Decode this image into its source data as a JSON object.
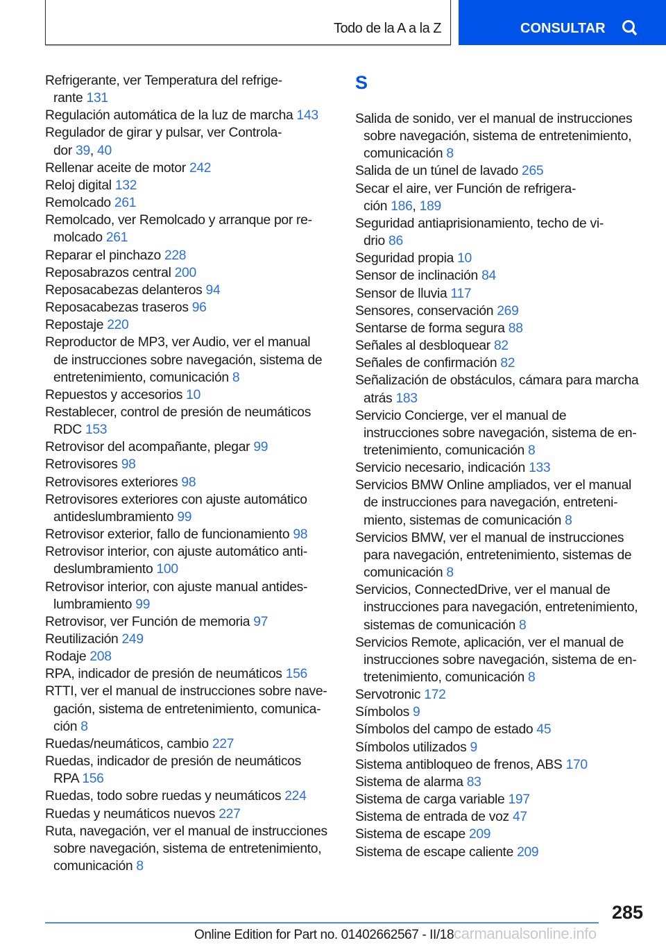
{
  "header": {
    "title": "Todo de la A a la Z",
    "button_label": "CONSULTAR",
    "button_icon": "search-icon",
    "accent": "#0053e8"
  },
  "left_entries": [
    {
      "lines": [
        "Refrigerante, ver Temperatura del refrige-",
        "rante"
      ],
      "pages": [
        "131"
      ]
    },
    {
      "lines": [
        "Regulación automática de la luz de marcha"
      ],
      "pages": [
        "143"
      ]
    },
    {
      "lines": [
        "Regulador de girar y pulsar, ver Controla-",
        "dor"
      ],
      "pages": [
        "39",
        "40"
      ]
    },
    {
      "lines": [
        "Rellenar aceite de motor"
      ],
      "pages": [
        "242"
      ]
    },
    {
      "lines": [
        "Reloj digital"
      ],
      "pages": [
        "132"
      ]
    },
    {
      "lines": [
        "Remolcado"
      ],
      "pages": [
        "261"
      ]
    },
    {
      "lines": [
        "Remolcado, ver Remolcado y arranque por re-",
        "molcado"
      ],
      "pages": [
        "261"
      ]
    },
    {
      "lines": [
        "Reparar el pinchazo"
      ],
      "pages": [
        "228"
      ]
    },
    {
      "lines": [
        "Reposabrazos central"
      ],
      "pages": [
        "200"
      ]
    },
    {
      "lines": [
        "Reposacabezas delanteros"
      ],
      "pages": [
        "94"
      ]
    },
    {
      "lines": [
        "Reposacabezas traseros"
      ],
      "pages": [
        "96"
      ]
    },
    {
      "lines": [
        "Repostaje"
      ],
      "pages": [
        "220"
      ]
    },
    {
      "lines": [
        "Reproductor de MP3, ver Audio, ver el manual",
        "de instrucciones sobre navegación, sistema de",
        "entretenimiento, comunicación"
      ],
      "pages": [
        "8"
      ]
    },
    {
      "lines": [
        "Repuestos y accesorios"
      ],
      "pages": [
        "10"
      ]
    },
    {
      "lines": [
        "Restablecer, control de presión de neumáticos",
        "RDC"
      ],
      "pages": [
        "153"
      ]
    },
    {
      "lines": [
        "Retrovisor del acompañante, plegar"
      ],
      "pages": [
        "99"
      ]
    },
    {
      "lines": [
        "Retrovisores"
      ],
      "pages": [
        "98"
      ]
    },
    {
      "lines": [
        "Retrovisores exteriores"
      ],
      "pages": [
        "98"
      ]
    },
    {
      "lines": [
        "Retrovisores exteriores con ajuste automático",
        "antideslumbramiento"
      ],
      "pages": [
        "99"
      ]
    },
    {
      "lines": [
        "Retrovisor exterior, fallo de funcionamiento"
      ],
      "pages": [
        "98"
      ]
    },
    {
      "lines": [
        "Retrovisor interior, con ajuste automático anti-",
        "deslumbramiento"
      ],
      "pages": [
        "100"
      ]
    },
    {
      "lines": [
        "Retrovisor interior, con ajuste manual antides-",
        "lumbramiento"
      ],
      "pages": [
        "99"
      ]
    },
    {
      "lines": [
        "Retrovisor, ver Función de memoria"
      ],
      "pages": [
        "97"
      ]
    },
    {
      "lines": [
        "Reutilización"
      ],
      "pages": [
        "249"
      ]
    },
    {
      "lines": [
        "Rodaje"
      ],
      "pages": [
        "208"
      ]
    },
    {
      "lines": [
        "RPA, indicador de presión de neumáticos"
      ],
      "pages": [
        "156"
      ]
    },
    {
      "lines": [
        "RTTI, ver el manual de instrucciones sobre nave-",
        "gación, sistema de entretenimiento, comunica-",
        "ción"
      ],
      "pages": [
        "8"
      ]
    },
    {
      "lines": [
        "Ruedas/neumáticos, cambio"
      ],
      "pages": [
        "227"
      ]
    },
    {
      "lines": [
        "Ruedas, indicador de presión de neumáticos",
        "RPA"
      ],
      "pages": [
        "156"
      ]
    },
    {
      "lines": [
        "Ruedas, todo sobre ruedas y neumáticos"
      ],
      "pages": [
        "224"
      ]
    },
    {
      "lines": [
        "Ruedas y neumáticos nuevos"
      ],
      "pages": [
        "227"
      ]
    },
    {
      "lines": [
        "Ruta, navegación, ver el manual de instrucciones",
        "sobre navegación, sistema de entretenimiento,",
        "comunicación"
      ],
      "pages": [
        "8"
      ]
    }
  ],
  "section_letter": "S",
  "right_entries": [
    {
      "lines": [
        "Salida de sonido, ver el manual de instrucciones",
        "sobre navegación, sistema de entretenimiento,",
        "comunicación"
      ],
      "pages": [
        "8"
      ]
    },
    {
      "lines": [
        "Salida de un túnel de lavado"
      ],
      "pages": [
        "265"
      ]
    },
    {
      "lines": [
        "Secar el aire, ver Función de refrigera-",
        "ción"
      ],
      "pages": [
        "186",
        "189"
      ]
    },
    {
      "lines": [
        "Seguridad antiaprisionamiento, techo de vi-",
        "drio"
      ],
      "pages": [
        "86"
      ]
    },
    {
      "lines": [
        "Seguridad propia"
      ],
      "pages": [
        "10"
      ]
    },
    {
      "lines": [
        "Sensor de inclinación"
      ],
      "pages": [
        "84"
      ]
    },
    {
      "lines": [
        "Sensor de lluvia"
      ],
      "pages": [
        "117"
      ]
    },
    {
      "lines": [
        "Sensores, conservación"
      ],
      "pages": [
        "269"
      ]
    },
    {
      "lines": [
        "Sentarse de forma segura"
      ],
      "pages": [
        "88"
      ]
    },
    {
      "lines": [
        "Señales al desbloquear"
      ],
      "pages": [
        "82"
      ]
    },
    {
      "lines": [
        "Señales de confirmación"
      ],
      "pages": [
        "82"
      ]
    },
    {
      "lines": [
        "Señalización de obstáculos, cámara para marcha",
        "atrás"
      ],
      "pages": [
        "183"
      ]
    },
    {
      "lines": [
        "Servicio Concierge, ver el manual de",
        "instrucciones sobre navegación, sistema de en-",
        "tretenimiento, comunicación"
      ],
      "pages": [
        "8"
      ]
    },
    {
      "lines": [
        "Servicio necesario, indicación"
      ],
      "pages": [
        "133"
      ]
    },
    {
      "lines": [
        "Servicios BMW Online ampliados, ver el manual",
        "de instrucciones para navegación, entreteni-",
        "miento, sistemas de comunicación"
      ],
      "pages": [
        "8"
      ]
    },
    {
      "lines": [
        "Servicios BMW, ver el manual de instrucciones",
        "para navegación, entretenimiento, sistemas de",
        "comunicación"
      ],
      "pages": [
        "8"
      ]
    },
    {
      "lines": [
        "Servicios, ConnectedDrive, ver el manual de",
        "instrucciones para navegación, entretenimiento,",
        "sistemas de comunicación"
      ],
      "pages": [
        "8"
      ]
    },
    {
      "lines": [
        "Servicios Remote, aplicación, ver el manual de",
        "instrucciones sobre navegación, sistema de en-",
        "tretenimiento, comunicación"
      ],
      "pages": [
        "8"
      ]
    },
    {
      "lines": [
        "Servotronic"
      ],
      "pages": [
        "172"
      ]
    },
    {
      "lines": [
        "Símbolos"
      ],
      "pages": [
        "9"
      ]
    },
    {
      "lines": [
        "Símbolos del campo de estado"
      ],
      "pages": [
        "45"
      ]
    },
    {
      "lines": [
        "Símbolos utilizados"
      ],
      "pages": [
        "9"
      ]
    },
    {
      "lines": [
        "Sistema antibloqueo de frenos, ABS"
      ],
      "pages": [
        "170"
      ]
    },
    {
      "lines": [
        "Sistema de alarma"
      ],
      "pages": [
        "83"
      ]
    },
    {
      "lines": [
        "Sistema de carga variable"
      ],
      "pages": [
        "197"
      ]
    },
    {
      "lines": [
        "Sistema de entrada de voz"
      ],
      "pages": [
        "47"
      ]
    },
    {
      "lines": [
        "Sistema de escape"
      ],
      "pages": [
        "209"
      ]
    },
    {
      "lines": [
        "Sistema de escape caliente"
      ],
      "pages": [
        "209"
      ]
    }
  ],
  "footer": {
    "page_number": "285",
    "edition": "Online Edition for Part no. 01402662567 - II/18",
    "watermark": "carmanualsonline.info"
  }
}
